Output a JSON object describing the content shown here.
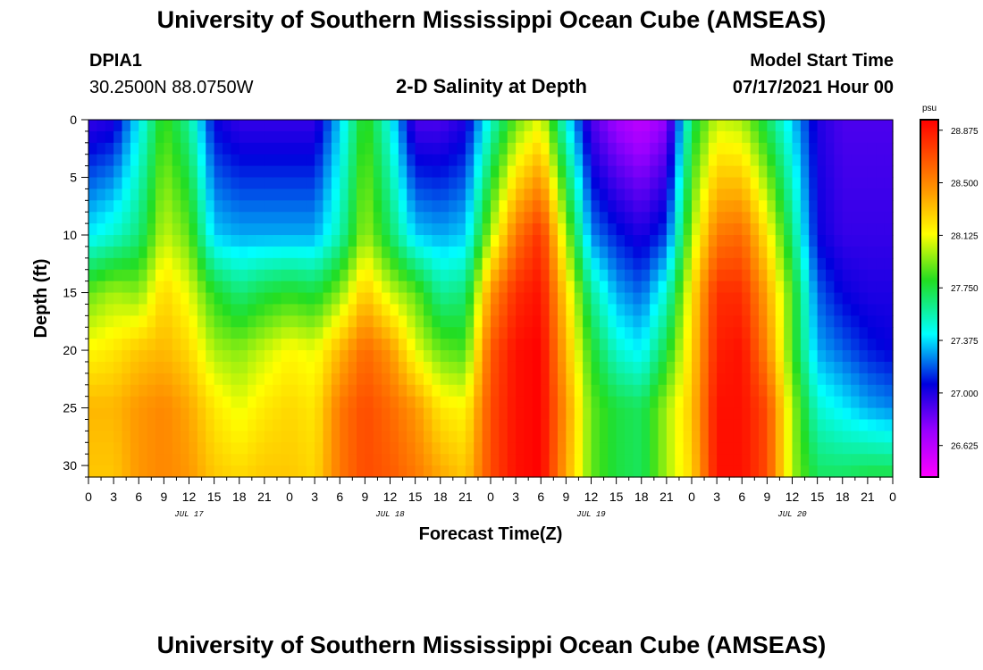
{
  "header": {
    "title": "University of Southern Mississippi Ocean Cube (AMSEAS)",
    "station_id": "DPIA1",
    "coordinates": "30.2500N  88.0750W",
    "plot_title": "2-D Salinity at Depth",
    "model_start_label": "Model Start Time",
    "model_start_value": "07/17/2021 Hour 00"
  },
  "footer": {
    "title": "University of Southern Mississippi Ocean Cube (AMSEAS)"
  },
  "chart_data": {
    "type": "heatmap",
    "title": "2-D Salinity at Depth",
    "xlabel": "Forecast Time(Z)",
    "ylabel": "Depth (ft)",
    "x_tick_labels": [
      "0",
      "3",
      "6",
      "9",
      "12",
      "15",
      "18",
      "21",
      "0",
      "3",
      "6",
      "9",
      "12",
      "15",
      "18",
      "21",
      "0",
      "3",
      "6",
      "9",
      "12",
      "15",
      "18",
      "21",
      "0",
      "3",
      "6",
      "9",
      "12",
      "15",
      "18",
      "21",
      "0"
    ],
    "date_labels": [
      {
        "label": "JUL 17",
        "hour": 12
      },
      {
        "label": "JUL 18",
        "hour": 36
      },
      {
        "label": "JUL 19",
        "hour": 60
      },
      {
        "label": "JUL 20",
        "hour": 84
      }
    ],
    "xlim_hours": [
      0,
      96
    ],
    "ylim_ft": [
      0,
      31
    ],
    "y_ticks": [
      0,
      5,
      10,
      15,
      20,
      25,
      30
    ],
    "colorbar": {
      "unit": "psu",
      "range": [
        26.4,
        28.95
      ],
      "tick_values": [
        28.875,
        28.5,
        28.125,
        27.75,
        27.375,
        27.0,
        26.625
      ],
      "tick_labels": [
        "28.875",
        "28.500",
        "28.125",
        "27.750",
        "27.375",
        "27.000",
        "26.625"
      ]
    },
    "time_hours": [
      0,
      3,
      6,
      9,
      12,
      15,
      18,
      21,
      24,
      27,
      30,
      33,
      36,
      39,
      42,
      45,
      48,
      51,
      54,
      57,
      60,
      63,
      66,
      69,
      72,
      75,
      78,
      81,
      84,
      87,
      90,
      93,
      96
    ],
    "depth_ft": [
      0,
      10,
      15,
      20,
      25,
      31
    ],
    "salinity_psu": [
      [
        26.95,
        27.4,
        27.9,
        28.15,
        28.35,
        28.3
      ],
      [
        27.0,
        27.5,
        28.0,
        28.2,
        28.35,
        28.3
      ],
      [
        27.4,
        27.65,
        27.95,
        28.3,
        28.45,
        28.45
      ],
      [
        27.85,
        28.05,
        28.25,
        28.35,
        28.5,
        28.5
      ],
      [
        27.6,
        27.9,
        28.1,
        28.25,
        28.4,
        28.45
      ],
      [
        27.05,
        27.35,
        27.8,
        28.0,
        28.2,
        28.3
      ],
      [
        26.95,
        27.3,
        27.65,
        27.95,
        28.1,
        28.25
      ],
      [
        26.95,
        27.3,
        27.75,
        28.05,
        28.2,
        28.3
      ],
      [
        26.95,
        27.3,
        27.8,
        28.15,
        28.25,
        28.3
      ],
      [
        26.95,
        27.3,
        27.75,
        28.1,
        28.2,
        28.25
      ],
      [
        27.35,
        27.55,
        27.95,
        28.35,
        28.55,
        28.55
      ],
      [
        27.85,
        28.0,
        28.3,
        28.6,
        28.7,
        28.7
      ],
      [
        27.45,
        27.7,
        28.05,
        28.45,
        28.6,
        28.65
      ],
      [
        26.9,
        27.35,
        27.9,
        28.1,
        28.45,
        28.55
      ],
      [
        26.9,
        27.3,
        27.6,
        27.9,
        28.2,
        28.4
      ],
      [
        27.0,
        27.35,
        27.65,
        27.85,
        28.15,
        28.3
      ],
      [
        27.5,
        28.0,
        28.45,
        28.65,
        28.7,
        28.7
      ],
      [
        27.9,
        28.55,
        28.8,
        28.9,
        28.9,
        28.9
      ],
      [
        28.1,
        28.8,
        28.9,
        28.95,
        28.95,
        28.95
      ],
      [
        27.45,
        28.0,
        28.25,
        28.35,
        28.45,
        28.4
      ],
      [
        26.9,
        27.25,
        27.6,
        27.8,
        27.9,
        27.9
      ],
      [
        26.7,
        27.1,
        27.3,
        27.5,
        27.75,
        27.75
      ],
      [
        26.6,
        27.0,
        27.2,
        27.4,
        27.7,
        27.7
      ],
      [
        26.75,
        27.15,
        27.5,
        27.75,
        28.0,
        28.0
      ],
      [
        27.7,
        28.0,
        28.2,
        28.25,
        28.3,
        28.25
      ],
      [
        28.05,
        28.55,
        28.8,
        28.85,
        28.9,
        28.9
      ],
      [
        28.0,
        28.6,
        28.8,
        28.9,
        28.9,
        28.9
      ],
      [
        27.7,
        28.2,
        28.4,
        28.5,
        28.7,
        28.7
      ],
      [
        27.35,
        27.65,
        27.85,
        27.85,
        28.0,
        28.0
      ],
      [
        27.0,
        27.05,
        27.2,
        27.3,
        27.5,
        27.7
      ],
      [
        26.9,
        26.95,
        27.05,
        27.2,
        27.4,
        27.7
      ],
      [
        26.9,
        26.95,
        27.0,
        27.1,
        27.3,
        27.75
      ],
      [
        26.9,
        26.95,
        27.0,
        27.05,
        27.25,
        27.75
      ]
    ]
  }
}
